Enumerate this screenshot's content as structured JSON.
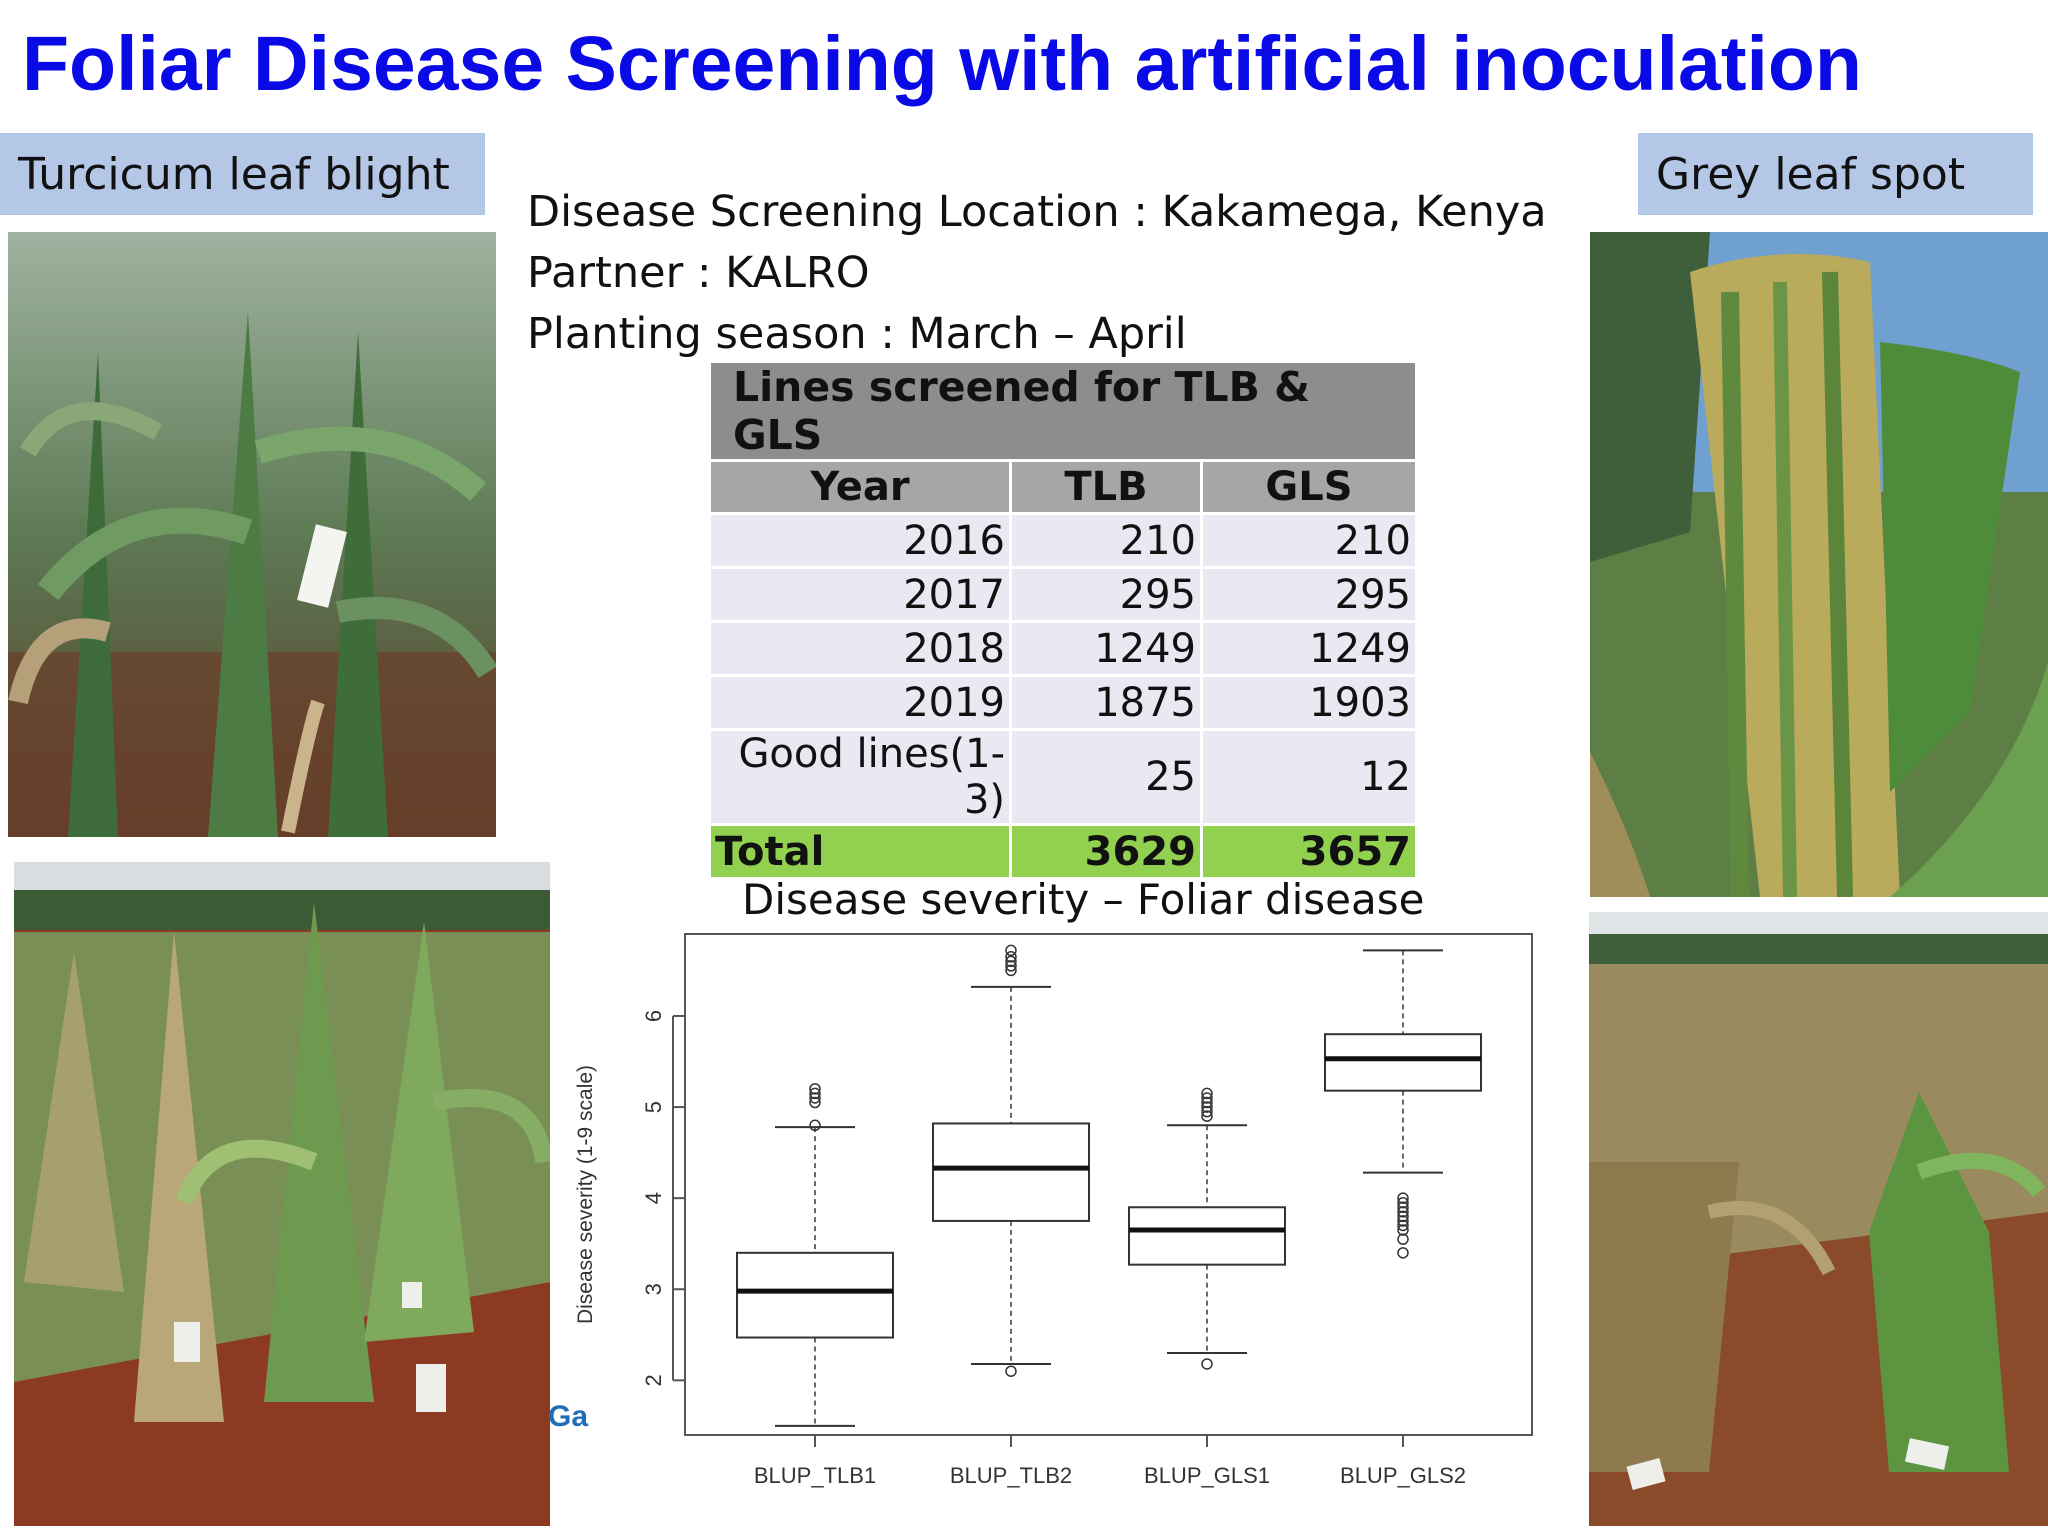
{
  "slide": {
    "title": "Foliar Disease Screening with artificial inoculation",
    "left_label": "Turcicum leaf blight",
    "right_label": "Grey leaf spot",
    "info_lines": [
      "Disease Screening Location : Kakamega, Kenya",
      "Partner : KALRO",
      "Planting season : March – April"
    ],
    "logo_fragment": "Ga"
  },
  "table": {
    "caption": "Lines screened for TLB & GLS",
    "headers": [
      "Year",
      "TLB",
      "GLS"
    ],
    "rows": [
      [
        "2016",
        "210",
        "210"
      ],
      [
        "2017",
        "295",
        "295"
      ],
      [
        "2018",
        "1249",
        "1249"
      ],
      [
        "2019",
        "1875",
        "1903"
      ],
      [
        "Good lines(1-3)",
        "25",
        "12"
      ]
    ],
    "total": [
      "Total",
      "3629",
      "3657"
    ]
  },
  "chart_data": {
    "type": "box",
    "title": "Disease severity – Foliar disease",
    "ylabel": "Disease severity (1-9 scale)",
    "xlabel": "",
    "ylim": [
      1.4,
      6.9
    ],
    "yticks": [
      2,
      3,
      4,
      5,
      6
    ],
    "categories": [
      "BLUP_TLB1",
      "BLUP_TLB2",
      "BLUP_GLS1",
      "BLUP_GLS2"
    ],
    "boxes": [
      {
        "name": "BLUP_TLB1",
        "whisker_low": 1.5,
        "q1": 2.47,
        "median": 2.98,
        "q3": 3.4,
        "whisker_high": 4.78,
        "outliers": [
          4.8,
          5.05,
          5.1,
          5.15,
          5.2
        ]
      },
      {
        "name": "BLUP_TLB2",
        "whisker_low": 2.18,
        "q1": 3.75,
        "median": 4.33,
        "q3": 4.82,
        "whisker_high": 6.32,
        "outliers": [
          2.1,
          6.5,
          6.55,
          6.6,
          6.65,
          6.72
        ]
      },
      {
        "name": "BLUP_GLS1",
        "whisker_low": 2.3,
        "q1": 3.27,
        "median": 3.65,
        "q3": 3.9,
        "whisker_high": 4.8,
        "outliers": [
          2.18,
          4.9,
          4.95,
          5.0,
          5.05,
          5.1,
          5.15
        ]
      },
      {
        "name": "BLUP_GLS2",
        "whisker_low": 4.28,
        "q1": 5.18,
        "median": 5.53,
        "q3": 5.8,
        "whisker_high": 6.72,
        "outliers": [
          3.4,
          3.55,
          3.65,
          3.7,
          3.75,
          3.8,
          3.85,
          3.9,
          3.95,
          4.0
        ]
      }
    ]
  }
}
